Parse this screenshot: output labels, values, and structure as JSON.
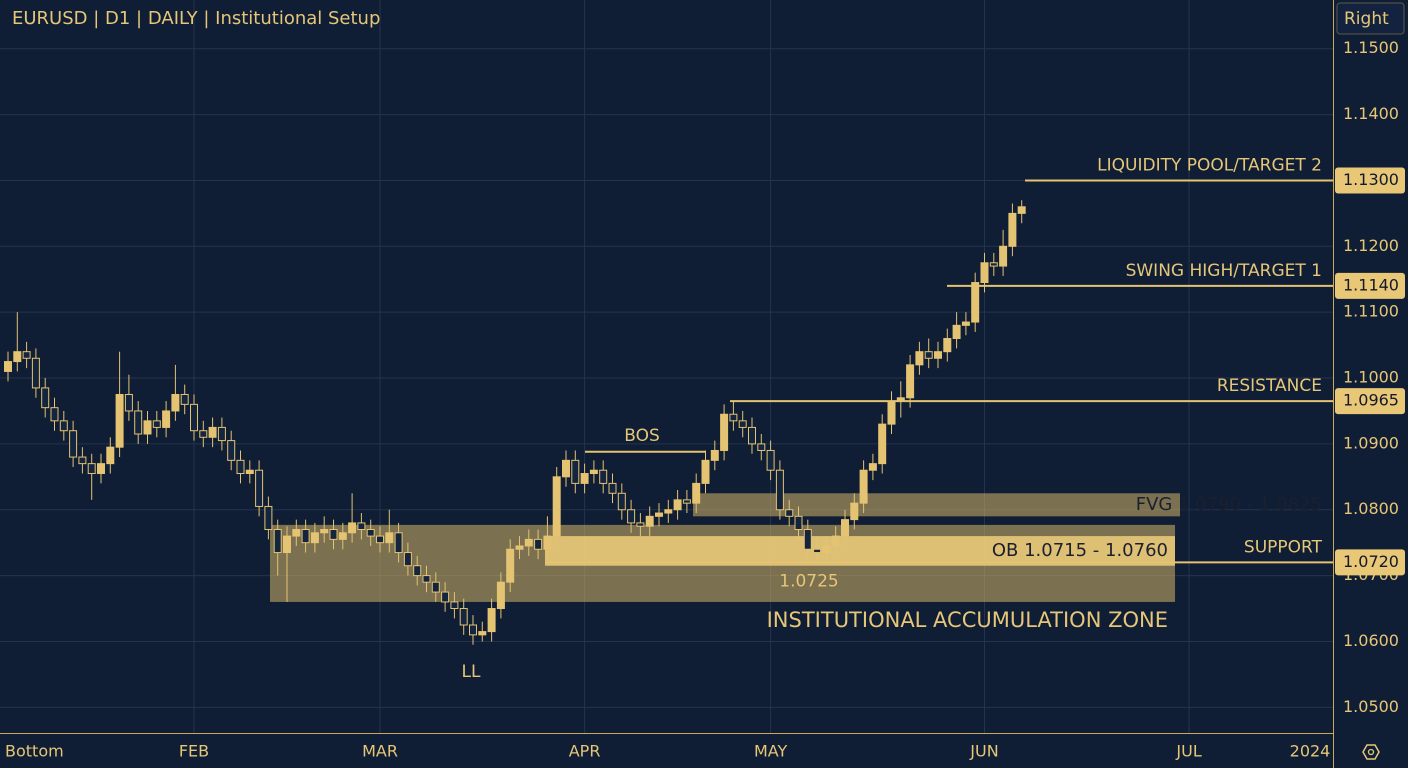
{
  "chart_data": {
    "type": "candlestick",
    "title": "EURUSD | D1 | DAILY | Institutional Setup",
    "ui_labels": {
      "right": "Right",
      "bottom": "Bottom"
    },
    "categories": [
      null,
      null,
      null,
      null,
      null,
      null,
      null,
      null,
      null,
      null,
      null,
      null,
      null,
      null,
      null,
      null,
      null,
      null,
      null,
      null,
      "FEB",
      null,
      null,
      null,
      null,
      null,
      null,
      null,
      null,
      null,
      null,
      null,
      null,
      null,
      null,
      null,
      null,
      null,
      null,
      null,
      "MAR",
      null,
      null,
      null,
      null,
      null,
      null,
      null,
      null,
      null,
      null,
      null,
      null,
      null,
      null,
      null,
      null,
      null,
      null,
      null,
      null,
      null,
      "APR",
      null,
      null,
      null,
      null,
      null,
      null,
      null,
      null,
      null,
      null,
      null,
      null,
      null,
      null,
      null,
      null,
      null,
      null,
      null,
      "MAY",
      null,
      null,
      null,
      null,
      null,
      null,
      null,
      null,
      null,
      null,
      null,
      null,
      null,
      null,
      null,
      null,
      null,
      null,
      null,
      null,
      null,
      null,
      "JUN",
      null,
      null,
      null,
      null,
      null,
      null,
      null,
      null,
      null,
      null,
      null,
      null,
      null,
      null,
      null,
      null,
      null,
      null,
      null,
      null,
      null,
      "JUL",
      null,
      null,
      null,
      null,
      null,
      null,
      null,
      null,
      null,
      null,
      null,
      null,
      "2024",
      null,
      null
    ],
    "open": [
      1.101,
      1.1025,
      1.104,
      1.103,
      1.0985,
      1.0955,
      1.0935,
      1.092,
      1.088,
      1.087,
      1.0855,
      1.087,
      1.0895,
      1.0975,
      1.095,
      1.0915,
      1.0935,
      1.0925,
      1.095,
      1.0975,
      1.096,
      1.092,
      1.091,
      1.0925,
      1.0905,
      1.0875,
      1.0855,
      1.086,
      1.0805,
      1.077,
      1.0735,
      1.076,
      1.077,
      1.075,
      1.0765,
      1.077,
      1.0755,
      1.0765,
      1.078,
      1.077,
      1.076,
      1.075,
      1.0765,
      1.0735,
      1.0715,
      1.07,
      1.069,
      1.0675,
      1.066,
      1.065,
      1.0625,
      1.061,
      1.0615,
      1.065,
      1.069,
      1.074,
      1.0745,
      1.0755,
      1.074,
      1.076,
      1.085,
      1.0875,
      1.084,
      1.0855,
      1.086,
      1.084,
      1.0825,
      1.08,
      1.078,
      1.0775,
      1.079,
      1.0795,
      1.08,
      1.0815,
      1.081,
      1.084,
      1.0875,
      1.089,
      1.0945,
      1.0935,
      1.0925,
      1.09,
      1.089,
      1.086,
      1.08,
      1.079,
      1.077,
      1.074,
      1.0735,
      1.0745,
      1.076,
      1.0785,
      1.081,
      1.086,
      1.087,
      1.093,
      1.0965,
      1.097,
      1.102,
      1.104,
      1.103,
      1.104,
      1.106,
      1.108,
      1.1085,
      1.1145,
      1.1175,
      1.117,
      1.12,
      1.125,
      null,
      null,
      null,
      null,
      null,
      null,
      null,
      null,
      null,
      null,
      null,
      null,
      null,
      null,
      null,
      null,
      null,
      null,
      null,
      null,
      null,
      null,
      null,
      null,
      null,
      null,
      null,
      null,
      null,
      null,
      null,
      null,
      null
    ],
    "high": [
      1.104,
      1.11,
      1.1055,
      1.1045,
      1.1,
      1.097,
      1.095,
      1.0935,
      1.0895,
      1.0885,
      1.0885,
      1.091,
      1.104,
      1.1005,
      1.0965,
      1.095,
      1.095,
      1.0965,
      1.102,
      1.099,
      1.0975,
      1.0935,
      1.094,
      1.094,
      1.092,
      1.089,
      1.0875,
      1.0875,
      1.082,
      1.0785,
      1.0775,
      1.0785,
      1.0785,
      1.078,
      1.079,
      1.0785,
      1.078,
      1.0825,
      1.0795,
      1.0785,
      1.0775,
      1.08,
      1.078,
      1.075,
      1.073,
      1.0715,
      1.0705,
      1.069,
      1.0675,
      1.0665,
      1.064,
      1.063,
      1.0665,
      1.0705,
      1.0755,
      1.076,
      1.077,
      1.077,
      1.079,
      1.0865,
      1.089,
      1.089,
      1.087,
      1.0875,
      1.0875,
      1.0855,
      1.084,
      1.0815,
      1.0795,
      1.0805,
      1.081,
      1.0815,
      1.083,
      1.083,
      1.0855,
      1.089,
      1.0905,
      1.096,
      1.0965,
      1.095,
      1.094,
      1.0915,
      1.0905,
      1.0875,
      1.0815,
      1.0805,
      1.0785,
      1.0755,
      1.076,
      1.0775,
      1.08,
      1.0825,
      1.0875,
      1.0885,
      1.0945,
      1.098,
      1.0995,
      1.1035,
      1.1055,
      1.106,
      1.1055,
      1.1075,
      1.11,
      1.11,
      1.116,
      1.119,
      1.119,
      1.1225,
      1.1265,
      1.127,
      null,
      null,
      null,
      null,
      null,
      null,
      null,
      null,
      null,
      null,
      null,
      null,
      null,
      null,
      null,
      null,
      null,
      null,
      null,
      null,
      null,
      null,
      null,
      null,
      null,
      null,
      null,
      null,
      null,
      null,
      null,
      null,
      null
    ],
    "low": [
      1.0995,
      1.101,
      1.1015,
      1.097,
      1.094,
      1.092,
      1.0905,
      1.0865,
      1.0855,
      1.0815,
      1.084,
      1.0855,
      1.088,
      1.0935,
      1.09,
      1.09,
      1.091,
      1.091,
      1.0935,
      1.0945,
      1.0905,
      1.0895,
      1.0895,
      1.089,
      1.086,
      1.084,
      1.084,
      1.079,
      1.0755,
      1.07,
      1.066,
      1.0745,
      1.0735,
      1.0735,
      1.075,
      1.074,
      1.074,
      1.075,
      1.0755,
      1.0745,
      1.0735,
      1.0735,
      1.072,
      1.07,
      1.0685,
      1.0675,
      1.066,
      1.0645,
      1.0635,
      1.061,
      1.0595,
      1.06,
      1.06,
      1.0635,
      1.0675,
      1.0725,
      1.073,
      1.0725,
      1.0725,
      1.0745,
      1.0835,
      1.0825,
      1.0825,
      1.084,
      1.0825,
      1.081,
      1.0785,
      1.0765,
      1.076,
      1.076,
      1.0775,
      1.078,
      1.0785,
      1.0795,
      1.0795,
      1.0825,
      1.086,
      1.0875,
      1.092,
      1.091,
      1.0885,
      1.0875,
      1.0845,
      1.0785,
      1.0775,
      1.0755,
      1.0725,
      1.072,
      1.072,
      1.073,
      1.0745,
      1.077,
      1.0795,
      1.0845,
      1.0855,
      1.0915,
      1.094,
      1.0955,
      1.1005,
      1.1015,
      1.1015,
      1.1025,
      1.1045,
      1.1065,
      1.107,
      1.113,
      1.1155,
      1.1155,
      1.1185,
      1.1235,
      null,
      null,
      null,
      null,
      null,
      null,
      null,
      null,
      null,
      null,
      null,
      null,
      null,
      null,
      null,
      null,
      null,
      null,
      null,
      null,
      null,
      null,
      null,
      null,
      null,
      null,
      null,
      null,
      null,
      null,
      null,
      null,
      null
    ],
    "close": [
      1.1025,
      1.104,
      1.103,
      1.0985,
      1.0955,
      1.0935,
      1.092,
      1.088,
      1.087,
      1.0855,
      1.087,
      1.0895,
      1.0975,
      1.095,
      1.0915,
      1.0935,
      1.0925,
      1.095,
      1.0975,
      1.096,
      1.092,
      1.091,
      1.0925,
      1.0905,
      1.0875,
      1.0855,
      1.086,
      1.0805,
      1.077,
      1.0735,
      1.076,
      1.077,
      1.075,
      1.0765,
      1.077,
      1.0755,
      1.0765,
      1.078,
      1.077,
      1.076,
      1.075,
      1.0765,
      1.0735,
      1.0715,
      1.07,
      1.069,
      1.0675,
      1.066,
      1.065,
      1.0625,
      1.061,
      1.0615,
      1.065,
      1.069,
      1.074,
      1.0745,
      1.0755,
      1.074,
      1.076,
      1.085,
      1.0875,
      1.084,
      1.0855,
      1.086,
      1.084,
      1.0825,
      1.08,
      1.078,
      1.0775,
      1.079,
      1.0795,
      1.08,
      1.0815,
      1.081,
      1.084,
      1.0875,
      1.089,
      1.0945,
      1.0935,
      1.0925,
      1.09,
      1.089,
      1.086,
      1.08,
      1.079,
      1.077,
      1.074,
      1.0735,
      1.0745,
      1.076,
      1.0785,
      1.081,
      1.086,
      1.087,
      1.093,
      1.0965,
      1.097,
      1.102,
      1.104,
      1.103,
      1.104,
      1.106,
      1.108,
      1.1085,
      1.1145,
      1.1175,
      1.117,
      1.12,
      1.125,
      1.126,
      null,
      null,
      null,
      null,
      null,
      null,
      null,
      null,
      null,
      null,
      null,
      null,
      null,
      null,
      null,
      null,
      null,
      null,
      null,
      null,
      null,
      null,
      null,
      null,
      null,
      null,
      null,
      null,
      null,
      null,
      null,
      null,
      null
    ],
    "up_color": "#e4c372",
    "down_color": "#142540",
    "ylim": [
      1.0461,
      1.1574
    ],
    "yticks": [
      {
        "value": 1.05,
        "label": "1.0500"
      },
      {
        "value": 1.06,
        "label": "1.0600"
      },
      {
        "value": 1.07,
        "label": "1.0700"
      },
      {
        "value": 1.08,
        "label": "1.0800"
      },
      {
        "value": 1.09,
        "label": "1.0900"
      },
      {
        "value": 1.1,
        "label": "1.1000"
      },
      {
        "value": 1.11,
        "label": "1.1100"
      },
      {
        "value": 1.12,
        "label": "1.1200"
      },
      {
        "value": 1.13,
        "label": "1.1300"
      },
      {
        "value": 1.14,
        "label": "1.1400"
      },
      {
        "value": 1.15,
        "label": "1.1500"
      }
    ],
    "grid": true,
    "zones": [
      {
        "label": "INSTITUTIONAL ACCUMULATION ZONE",
        "low": 1.066,
        "high": 1.0777
      },
      {
        "label": "OB 1.0715 - 1.0760",
        "low": 1.0715,
        "high": 1.076
      },
      {
        "label": "FVG 1.0790 - 1.0825",
        "low": 1.079,
        "high": 1.0825
      }
    ],
    "levels": [
      {
        "name": "LIQUIDITY POOL/TARGET 2",
        "value": 1.13,
        "label": "1.1300"
      },
      {
        "name": "SWING HIGH/TARGET 1",
        "value": 1.114,
        "label": "1.1140"
      },
      {
        "name": "RESISTANCE",
        "value": 1.0965,
        "label": "1.0965"
      },
      {
        "name": "SUPPORT",
        "value": 1.072,
        "label": "1.0720"
      }
    ],
    "bos": {
      "text": "BOS",
      "value": 1.0888
    },
    "annotations": [
      {
        "text": "LL"
      },
      {
        "text": "1.0725"
      }
    ]
  }
}
